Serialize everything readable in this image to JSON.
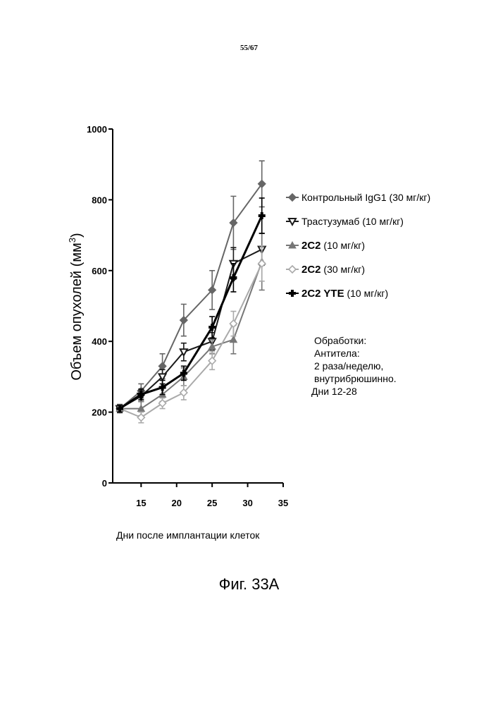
{
  "page_number": "55/67",
  "figure_caption": "Фиг. 33A",
  "y_label": {
    "main": "Объем опухолей (мм",
    "sup": "3",
    "tail": ")"
  },
  "x_label": "Дни после имплантации клеток",
  "legend": [
    {
      "name": "Контрольный IgG1 (30 мг/кг)",
      "code": "",
      "note": "",
      "marker": "diamond",
      "color": "#666666"
    },
    {
      "name": "Трастузумаб  (10 мг/кг)",
      "code": "",
      "note": "",
      "marker": "triangle-down",
      "color": "#1a1a1a"
    },
    {
      "name": "",
      "code": "2C2",
      "note": "(10 мг/кг)",
      "marker": "triangle-up",
      "color": "#777777"
    },
    {
      "name": "",
      "code": "2C2",
      "note": " (30 мг/кг)",
      "marker": "diamond-open",
      "color": "#aaaaaa"
    },
    {
      "name": "",
      "code": "2C2 YTE",
      "note": "(10 мг/кг)",
      "marker": "plus",
      "color": "#000000"
    }
  ],
  "notes": [
    "Обработки:",
    "Антитела:",
    "2 раза/неделю,",
    "внутрибрюшинно.",
    "Дни  12-28"
  ],
  "chart_data": {
    "type": "line",
    "xlabel": "Дни после имплантации клеток",
    "ylabel": "Объем опухолей (мм3)",
    "x_ticks": [
      15,
      20,
      25,
      30,
      35
    ],
    "y_ticks": [
      0,
      200,
      400,
      600,
      800,
      1000
    ],
    "xlim": [
      11,
      35
    ],
    "ylim": [
      0,
      1000
    ],
    "x": [
      12,
      15,
      18,
      21,
      25,
      28,
      32
    ],
    "series": [
      {
        "name": "Контрольный IgG1 (30 мг/кг)",
        "color": "#666666",
        "width": 2,
        "values": [
          210,
          260,
          330,
          460,
          545,
          735,
          845
        ],
        "errors": [
          12,
          20,
          35,
          45,
          55,
          75,
          65
        ]
      },
      {
        "name": "Трастузумаб (10 мг/кг)",
        "color": "#1a1a1a",
        "width": 2,
        "values": [
          210,
          245,
          300,
          370,
          400,
          620,
          660
        ],
        "errors": [
          10,
          15,
          20,
          25,
          25,
          45,
          45
        ]
      },
      {
        "name": "2C2 (10 мг/кг)",
        "color": "#777777",
        "width": 2,
        "values": [
          210,
          210,
          250,
          300,
          385,
          405,
          625
        ],
        "errors": [
          10,
          20,
          20,
          25,
          20,
          40,
          80
        ]
      },
      {
        "name": "2C2 (30 мг/кг)",
        "color": "#aaaaaa",
        "width": 2,
        "values": [
          210,
          185,
          225,
          255,
          345,
          450,
          620
        ],
        "errors": [
          10,
          15,
          15,
          20,
          25,
          35,
          50
        ]
      },
      {
        "name": "2C2 YTE (10 мг/кг)",
        "color": "#000000",
        "width": 3,
        "values": [
          210,
          250,
          270,
          310,
          440,
          580,
          755
        ],
        "errors": [
          10,
          15,
          20,
          20,
          30,
          40,
          50
        ]
      }
    ]
  }
}
